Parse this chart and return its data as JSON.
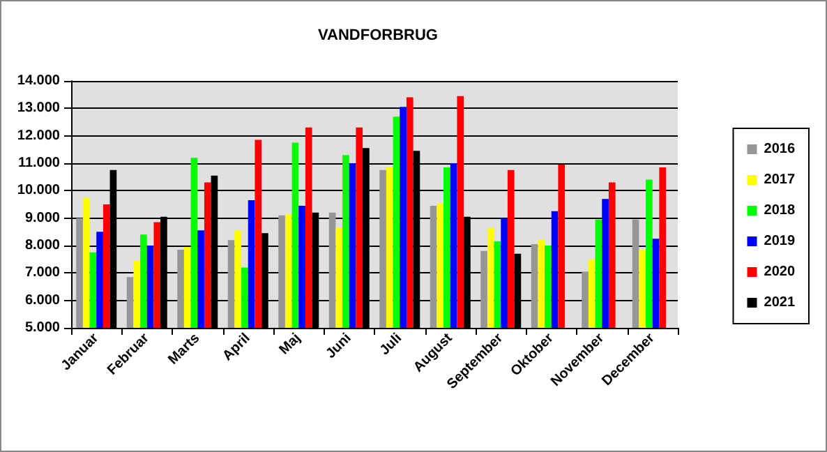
{
  "chart_data": {
    "type": "bar",
    "title": "VANDFORBRUG",
    "categories": [
      "Januar",
      "Februar",
      "Marts",
      "April",
      "Maj",
      "Juni",
      "Juli",
      "August",
      "September",
      "Oktober",
      "November",
      "December"
    ],
    "series": [
      {
        "name": "2016",
        "color": "#969696",
        "values": [
          9000,
          6850,
          7850,
          8200,
          9100,
          9200,
          10750,
          9450,
          7800,
          8050,
          7050,
          8950
        ]
      },
      {
        "name": "2017",
        "color": "#ffff00",
        "values": [
          9750,
          7450,
          7950,
          8550,
          9150,
          8650,
          10850,
          9550,
          8650,
          8200,
          7500,
          7850
        ]
      },
      {
        "name": "2018",
        "color": "#00ff00",
        "values": [
          7750,
          8400,
          11200,
          7200,
          11750,
          11300,
          12700,
          10850,
          8150,
          8000,
          8950,
          10400
        ]
      },
      {
        "name": "2019",
        "color": "#0000ff",
        "values": [
          8500,
          8000,
          8550,
          9650,
          9450,
          11000,
          13050,
          11000,
          9000,
          9250,
          9700,
          8250
        ]
      },
      {
        "name": "2020",
        "color": "#ff0000",
        "values": [
          9500,
          8850,
          10300,
          11850,
          12300,
          12300,
          13400,
          13450,
          10750,
          10950,
          10300,
          10850
        ]
      },
      {
        "name": "2021",
        "color": "#000000",
        "values": [
          10750,
          9050,
          10550,
          8450,
          9200,
          11550,
          11450,
          9050,
          7700,
          null,
          null,
          null
        ]
      }
    ],
    "ylim": [
      5000,
      14000
    ],
    "yticks": [
      {
        "value": 5000,
        "label": "5.000"
      },
      {
        "value": 6000,
        "label": "6.000"
      },
      {
        "value": 7000,
        "label": "7.000"
      },
      {
        "value": 8000,
        "label": "8.000"
      },
      {
        "value": 9000,
        "label": "9.000"
      },
      {
        "value": 10000,
        "label": "10.000"
      },
      {
        "value": 11000,
        "label": "11.000"
      },
      {
        "value": 12000,
        "label": "12.000"
      },
      {
        "value": 13000,
        "label": "13.000"
      },
      {
        "value": 14000,
        "label": "14.000"
      }
    ],
    "grid": "y",
    "legend": "right"
  }
}
